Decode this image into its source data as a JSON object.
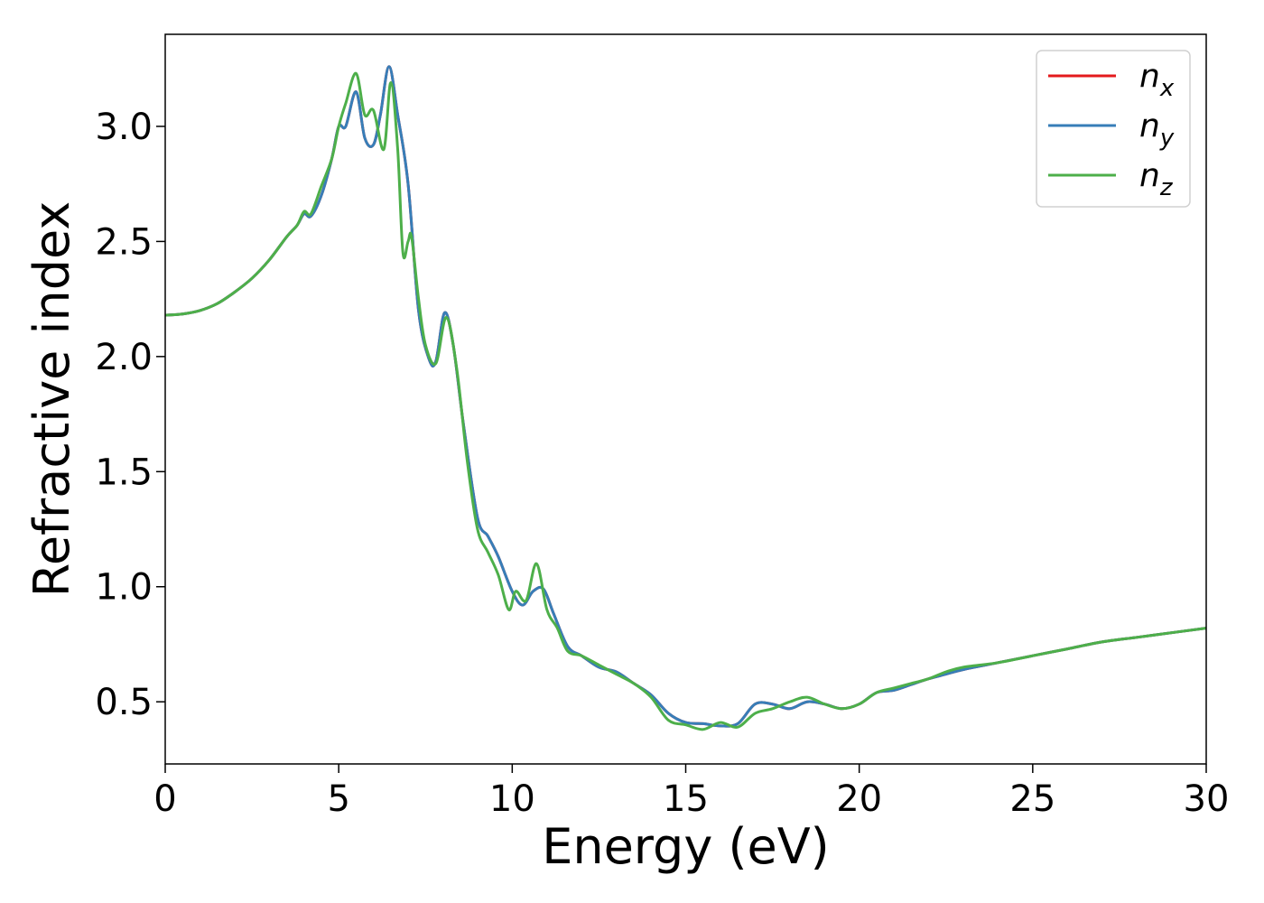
{
  "chart_data": {
    "type": "line",
    "title": "",
    "xlabel": "Energy (eV)",
    "ylabel": "Refractive index",
    "xlim": [
      0,
      30
    ],
    "ylim": [
      0.23,
      3.4
    ],
    "xticks": [
      0,
      5,
      10,
      15,
      20,
      25,
      30
    ],
    "xtick_labels": [
      "0",
      "5",
      "10",
      "15",
      "20",
      "25",
      "30"
    ],
    "yticks": [
      0.5,
      1.0,
      1.5,
      2.0,
      2.5,
      3.0
    ],
    "ytick_labels": [
      "0.5",
      "1.0",
      "1.5",
      "2.0",
      "2.5",
      "3.0"
    ],
    "grid": false,
    "legend": {
      "placement": "top-right",
      "entries": [
        {
          "base": "n",
          "sub": "x"
        },
        {
          "base": "n",
          "sub": "y"
        },
        {
          "base": "n",
          "sub": "z"
        }
      ]
    },
    "series": [
      {
        "name": "n_x",
        "color": "#e41a1c",
        "x": [
          0,
          0.5,
          1,
          1.5,
          2,
          2.5,
          3,
          3.5,
          3.8,
          4.0,
          4.2,
          4.5,
          4.8,
          5.0,
          5.2,
          5.5,
          5.75,
          6.0,
          6.2,
          6.45,
          6.7,
          7.0,
          7.3,
          7.6,
          7.8,
          8.05,
          8.3,
          8.6,
          9.0,
          9.3,
          9.6,
          10.0,
          10.3,
          10.6,
          10.9,
          11.2,
          11.6,
          12.0,
          12.5,
          13.0,
          13.5,
          14.0,
          14.5,
          15.0,
          15.5,
          16.0,
          16.5,
          17.0,
          17.5,
          18.0,
          18.5,
          19.0,
          19.5,
          20.0,
          20.5,
          21.0,
          21.5,
          22.0,
          22.5,
          23.0,
          24.0,
          25.0,
          26.0,
          27.0,
          28.0,
          29.0,
          30.0
        ],
        "y": [
          2.18,
          2.185,
          2.2,
          2.23,
          2.28,
          2.34,
          2.42,
          2.52,
          2.57,
          2.62,
          2.61,
          2.7,
          2.86,
          3.0,
          3.0,
          3.15,
          2.95,
          2.92,
          3.05,
          3.26,
          3.05,
          2.75,
          2.2,
          1.99,
          1.98,
          2.19,
          2.05,
          1.7,
          1.3,
          1.22,
          1.13,
          0.98,
          0.92,
          0.98,
          0.99,
          0.88,
          0.74,
          0.7,
          0.65,
          0.63,
          0.58,
          0.53,
          0.45,
          0.41,
          0.405,
          0.395,
          0.405,
          0.49,
          0.49,
          0.47,
          0.5,
          0.49,
          0.47,
          0.49,
          0.54,
          0.55,
          0.575,
          0.6,
          0.62,
          0.64,
          0.67,
          0.7,
          0.73,
          0.76,
          0.78,
          0.8,
          0.82
        ]
      },
      {
        "name": "n_y",
        "color": "#377eb8",
        "x": [
          0,
          0.5,
          1,
          1.5,
          2,
          2.5,
          3,
          3.5,
          3.8,
          4.0,
          4.2,
          4.5,
          4.8,
          5.0,
          5.2,
          5.5,
          5.75,
          6.0,
          6.2,
          6.45,
          6.7,
          7.0,
          7.3,
          7.6,
          7.8,
          8.05,
          8.3,
          8.6,
          9.0,
          9.3,
          9.6,
          10.0,
          10.3,
          10.6,
          10.9,
          11.2,
          11.6,
          12.0,
          12.5,
          13.0,
          13.5,
          14.0,
          14.5,
          15.0,
          15.5,
          16.0,
          16.5,
          17.0,
          17.5,
          18.0,
          18.5,
          19.0,
          19.5,
          20.0,
          20.5,
          21.0,
          21.5,
          22.0,
          22.5,
          23.0,
          24.0,
          25.0,
          26.0,
          27.0,
          28.0,
          29.0,
          30.0
        ],
        "y": [
          2.18,
          2.185,
          2.2,
          2.23,
          2.28,
          2.34,
          2.42,
          2.52,
          2.57,
          2.62,
          2.61,
          2.7,
          2.86,
          3.0,
          3.0,
          3.15,
          2.95,
          2.92,
          3.05,
          3.26,
          3.05,
          2.75,
          2.2,
          1.99,
          1.98,
          2.19,
          2.05,
          1.7,
          1.3,
          1.22,
          1.13,
          0.98,
          0.92,
          0.98,
          0.99,
          0.88,
          0.74,
          0.7,
          0.65,
          0.63,
          0.58,
          0.53,
          0.45,
          0.41,
          0.405,
          0.395,
          0.405,
          0.49,
          0.49,
          0.47,
          0.5,
          0.49,
          0.47,
          0.49,
          0.54,
          0.55,
          0.575,
          0.6,
          0.62,
          0.64,
          0.67,
          0.7,
          0.73,
          0.76,
          0.78,
          0.8,
          0.82
        ]
      },
      {
        "name": "n_z",
        "color": "#4daf4a",
        "x": [
          0,
          0.5,
          1,
          1.5,
          2,
          2.5,
          3,
          3.5,
          3.8,
          4.0,
          4.2,
          4.5,
          4.8,
          5.0,
          5.2,
          5.5,
          5.75,
          6.0,
          6.3,
          6.5,
          6.7,
          6.85,
          7.0,
          7.1,
          7.3,
          7.5,
          7.8,
          8.1,
          8.4,
          8.7,
          9.0,
          9.3,
          9.6,
          9.9,
          10.1,
          10.4,
          10.7,
          11.0,
          11.3,
          11.6,
          12.0,
          12.5,
          13.0,
          13.5,
          14.0,
          14.5,
          15.0,
          15.5,
          16.0,
          16.5,
          17.0,
          17.5,
          18.0,
          18.5,
          19.0,
          19.5,
          20.0,
          20.5,
          21.0,
          21.5,
          22.0,
          22.5,
          23.0,
          24.0,
          25.0,
          26.0,
          27.0,
          28.0,
          29.0,
          30.0
        ],
        "y": [
          2.18,
          2.185,
          2.2,
          2.23,
          2.28,
          2.34,
          2.42,
          2.52,
          2.57,
          2.63,
          2.62,
          2.74,
          2.86,
          3.0,
          3.1,
          3.23,
          3.05,
          3.07,
          2.9,
          3.19,
          2.9,
          2.45,
          2.5,
          2.52,
          2.25,
          2.05,
          1.97,
          2.17,
          1.95,
          1.55,
          1.25,
          1.15,
          1.05,
          0.9,
          0.98,
          0.94,
          1.1,
          0.9,
          0.82,
          0.72,
          0.7,
          0.66,
          0.62,
          0.58,
          0.52,
          0.42,
          0.4,
          0.38,
          0.41,
          0.39,
          0.45,
          0.47,
          0.5,
          0.52,
          0.49,
          0.47,
          0.49,
          0.54,
          0.56,
          0.58,
          0.6,
          0.63,
          0.65,
          0.67,
          0.7,
          0.73,
          0.76,
          0.78,
          0.8,
          0.82
        ]
      }
    ]
  }
}
